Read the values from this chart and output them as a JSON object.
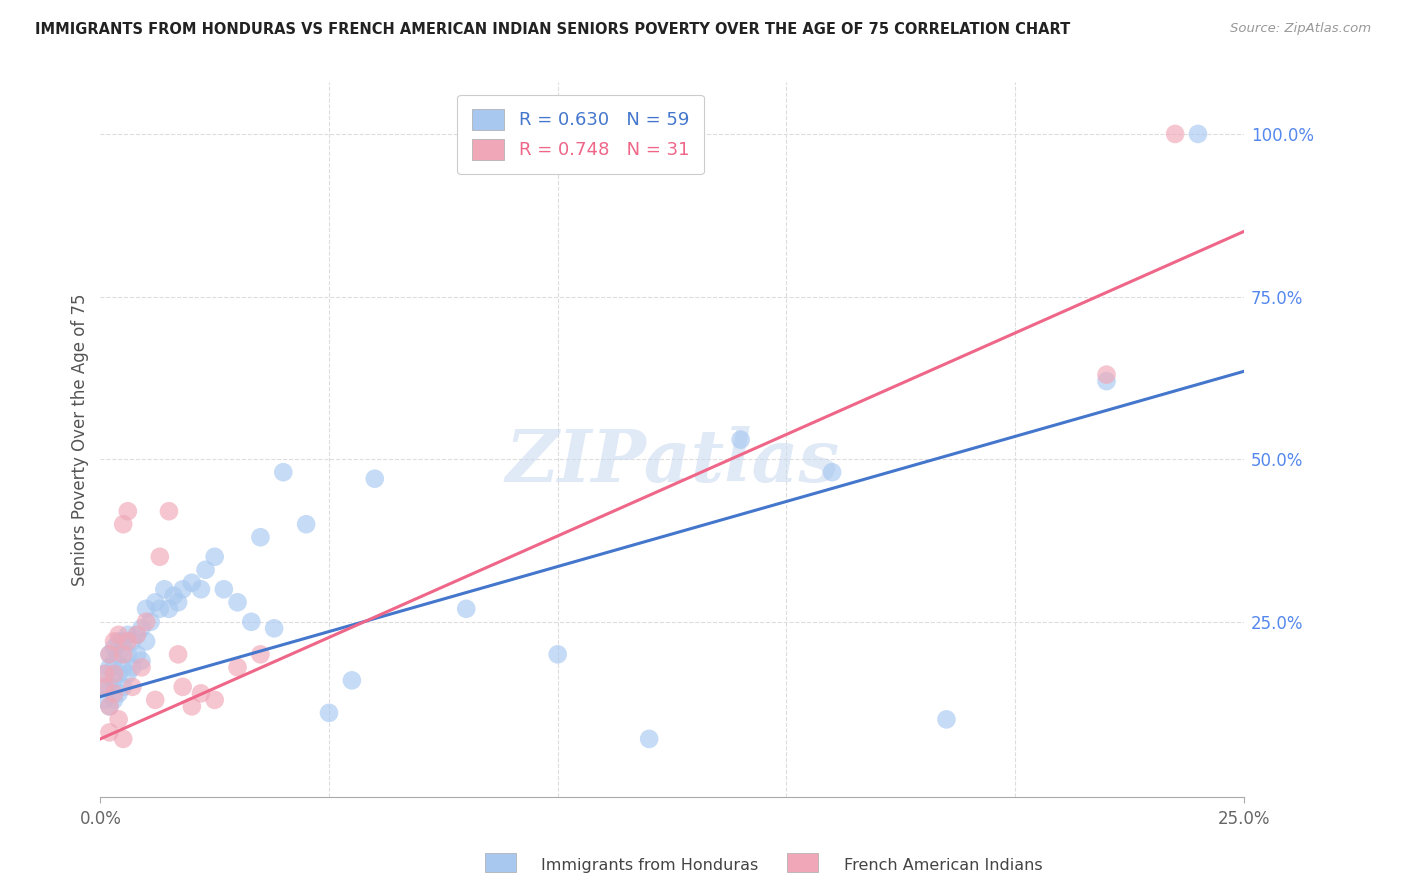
{
  "title": "IMMIGRANTS FROM HONDURAS VS FRENCH AMERICAN INDIAN SENIORS POVERTY OVER THE AGE OF 75 CORRELATION CHART",
  "source": "Source: ZipAtlas.com",
  "ylabel": "Seniors Poverty Over the Age of 75",
  "ytick_labels": [
    "100.0%",
    "75.0%",
    "50.0%",
    "25.0%"
  ],
  "ytick_values": [
    1.0,
    0.75,
    0.5,
    0.25
  ],
  "xlim": [
    0.0,
    0.25
  ],
  "ylim": [
    -0.02,
    1.08
  ],
  "blue_R": 0.63,
  "blue_N": 59,
  "pink_R": 0.748,
  "pink_N": 31,
  "blue_color": "#A8C8F0",
  "pink_color": "#F0A8B8",
  "blue_line_color": "#4477CC",
  "pink_line_color": "#EE6688",
  "legend_label_blue": "Immigrants from Honduras",
  "legend_label_pink": "French American Indians",
  "watermark": "ZIPatlas",
  "blue_x": [
    0.001,
    0.001,
    0.001,
    0.002,
    0.002,
    0.002,
    0.002,
    0.003,
    0.003,
    0.003,
    0.003,
    0.004,
    0.004,
    0.004,
    0.004,
    0.005,
    0.005,
    0.005,
    0.006,
    0.006,
    0.006,
    0.007,
    0.007,
    0.008,
    0.008,
    0.009,
    0.009,
    0.01,
    0.01,
    0.011,
    0.012,
    0.013,
    0.014,
    0.015,
    0.016,
    0.017,
    0.018,
    0.02,
    0.022,
    0.023,
    0.025,
    0.027,
    0.03,
    0.033,
    0.035,
    0.038,
    0.04,
    0.045,
    0.05,
    0.055,
    0.06,
    0.08,
    0.1,
    0.12,
    0.14,
    0.16,
    0.185,
    0.22,
    0.24
  ],
  "blue_y": [
    0.13,
    0.15,
    0.17,
    0.12,
    0.15,
    0.18,
    0.2,
    0.13,
    0.16,
    0.19,
    0.21,
    0.14,
    0.17,
    0.2,
    0.22,
    0.15,
    0.18,
    0.22,
    0.17,
    0.2,
    0.23,
    0.18,
    0.22,
    0.2,
    0.23,
    0.19,
    0.24,
    0.22,
    0.27,
    0.25,
    0.28,
    0.27,
    0.3,
    0.27,
    0.29,
    0.28,
    0.3,
    0.31,
    0.3,
    0.33,
    0.35,
    0.3,
    0.28,
    0.25,
    0.38,
    0.24,
    0.48,
    0.4,
    0.11,
    0.16,
    0.47,
    0.27,
    0.2,
    0.07,
    0.53,
    0.48,
    0.1,
    0.62,
    1.0
  ],
  "pink_x": [
    0.001,
    0.001,
    0.002,
    0.002,
    0.002,
    0.003,
    0.003,
    0.003,
    0.004,
    0.004,
    0.005,
    0.005,
    0.005,
    0.006,
    0.006,
    0.007,
    0.008,
    0.009,
    0.01,
    0.012,
    0.013,
    0.015,
    0.017,
    0.018,
    0.02,
    0.022,
    0.025,
    0.03,
    0.035,
    0.22,
    0.235
  ],
  "pink_y": [
    0.15,
    0.17,
    0.08,
    0.12,
    0.2,
    0.14,
    0.17,
    0.22,
    0.1,
    0.23,
    0.07,
    0.2,
    0.4,
    0.22,
    0.42,
    0.15,
    0.23,
    0.18,
    0.25,
    0.13,
    0.35,
    0.42,
    0.2,
    0.15,
    0.12,
    0.14,
    0.13,
    0.18,
    0.2,
    0.63,
    1.0
  ],
  "blue_line_x0": 0.0,
  "blue_line_y0": 0.135,
  "blue_line_x1": 0.25,
  "blue_line_y1": 0.635,
  "pink_line_x0": 0.0,
  "pink_line_y0": 0.07,
  "pink_line_x1": 0.25,
  "pink_line_y1": 0.85
}
